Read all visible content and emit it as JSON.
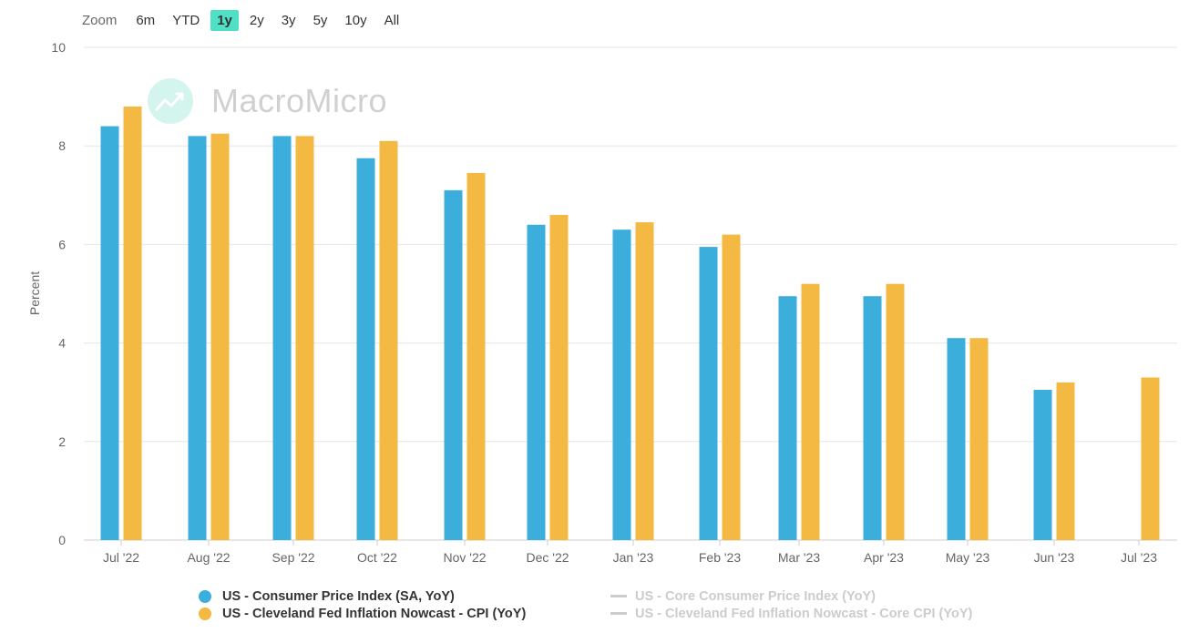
{
  "zoom": {
    "label": "Zoom",
    "options": [
      "6m",
      "YTD",
      "1y",
      "2y",
      "3y",
      "5y",
      "10y",
      "All"
    ],
    "active": "1y"
  },
  "logo": {
    "text": "MacroMicro"
  },
  "colors": {
    "series1": "#3caedc",
    "series2": "#f4b942",
    "grid": "#e6e6e6",
    "axis_text": "#666666",
    "zoom_active": "#4fe0c5",
    "legend_inactive": "#cccccc"
  },
  "chart_data": {
    "type": "bar",
    "title": "",
    "xlabel": "",
    "ylabel": "Percent",
    "ylim": [
      0,
      10
    ],
    "yticks": [
      0,
      2,
      4,
      6,
      8,
      10
    ],
    "grid": true,
    "legend_position": "bottom",
    "categories": [
      "Jul '22",
      "Aug '22",
      "Sep '22",
      "Oct '22",
      "Nov '22",
      "Dec '22",
      "Jan '23",
      "Feb '23",
      "Mar '23",
      "Apr '23",
      "May '23",
      "Jun '23",
      "Jul '23"
    ],
    "series": [
      {
        "name": "US - Consumer Price Index (SA, YoY)",
        "values": [
          8.4,
          8.2,
          8.2,
          7.75,
          7.1,
          6.4,
          6.3,
          5.95,
          4.95,
          4.95,
          4.1,
          3.05,
          null
        ]
      },
      {
        "name": "US - Cleveland Fed Inflation Nowcast - CPI (YoY)",
        "values": [
          8.8,
          8.25,
          8.2,
          8.1,
          7.45,
          6.6,
          6.45,
          6.2,
          5.2,
          5.2,
          4.1,
          3.2,
          3.3
        ]
      }
    ],
    "hidden_series": [
      {
        "name": "US - Core Consumer Price Index (YoY)"
      },
      {
        "name": "US - Cleveland Fed Inflation Nowcast - Core CPI (YoY)"
      }
    ]
  }
}
